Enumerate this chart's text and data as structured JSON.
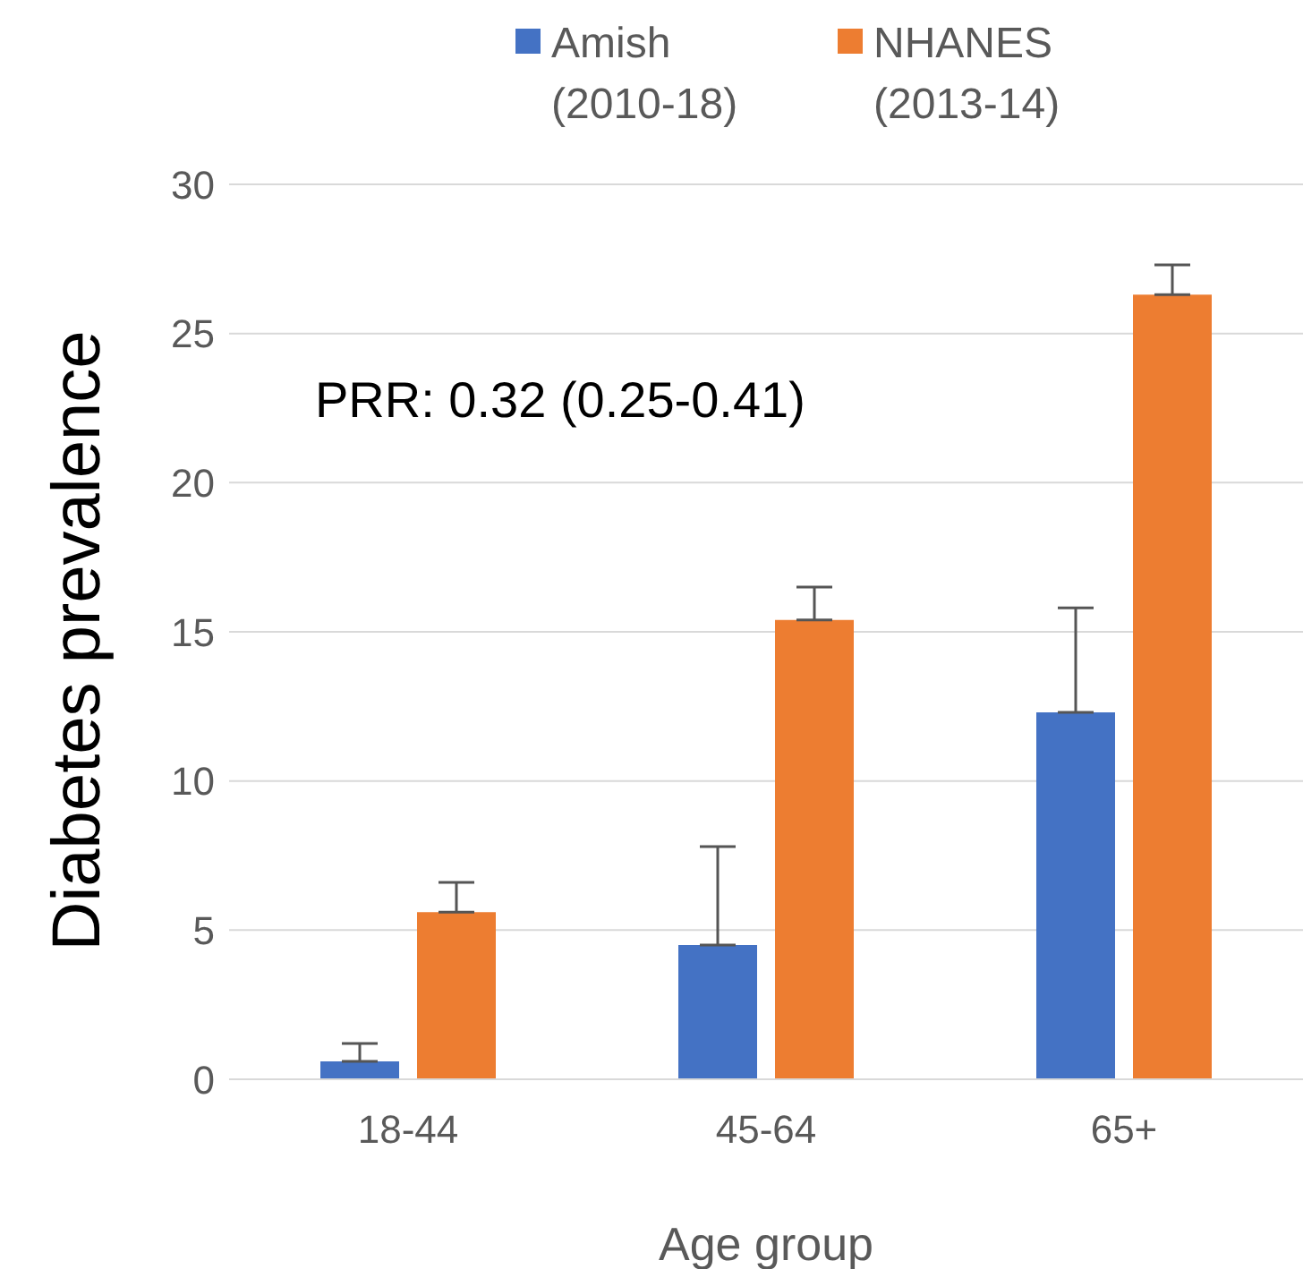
{
  "chart_data": {
    "type": "bar",
    "xlabel": "Age group",
    "ylabel": "Diabetes prevalence",
    "categories": [
      "18-44",
      "45-64",
      "65+"
    ],
    "series": [
      {
        "name": "Amish (2010-18)",
        "color": "#4472c4",
        "values": [
          0.6,
          4.5,
          12.3
        ],
        "errors": [
          [
            0.6,
            1.2
          ],
          [
            4.5,
            7.8
          ],
          [
            12.3,
            15.8
          ]
        ]
      },
      {
        "name": "NHANES (2013-14)",
        "color": "#ed7d31",
        "values": [
          5.6,
          15.4,
          26.3
        ],
        "errors": [
          [
            5.6,
            6.6
          ],
          [
            15.4,
            16.5
          ],
          [
            26.3,
            27.3
          ]
        ]
      }
    ],
    "ylim": [
      0,
      30
    ],
    "yticks": [
      0,
      5,
      10,
      15,
      20,
      25,
      30
    ],
    "grid": "y",
    "legend": "top",
    "annotations": [
      "PRR:  0.32 (0.25-0.41)"
    ]
  }
}
